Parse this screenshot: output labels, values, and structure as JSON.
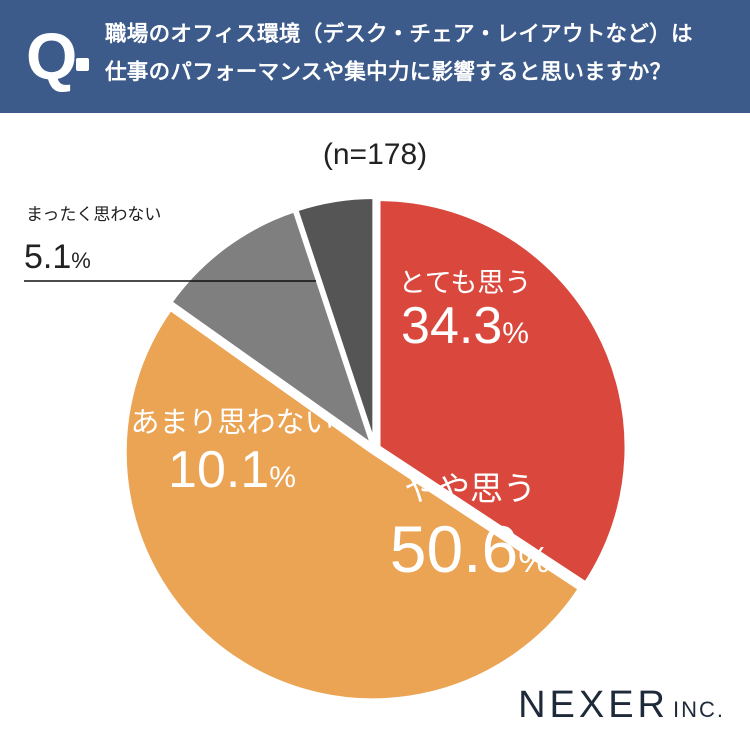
{
  "header": {
    "q_mark": "Q",
    "question_line1": "職場のオフィス環境（デスク・チェア・レイアウトなど）は",
    "question_line2": "仕事のパフォーマンスや集中力に影響すると思いますか？"
  },
  "n_label": "(n=178)",
  "logo": {
    "main": "NEXER",
    "suffix": "INC."
  },
  "colors": {
    "header_bg": "#3c5a8a",
    "slice_totemo": "#d9473d",
    "slice_yaya": "#eba354",
    "slice_amari": "#7f7f7f",
    "slice_mattaku": "#555555"
  },
  "chart_data": {
    "type": "pie",
    "start_angle": "12 o'clock",
    "direction": "clockwise",
    "slices": [
      {
        "label": "とても思う",
        "value": 34.3,
        "display": "34.3",
        "unit": "%",
        "color": "#d9473d"
      },
      {
        "label": "やや思う",
        "value": 50.6,
        "display": "50.6",
        "unit": "%",
        "color": "#eba354"
      },
      {
        "label": "あまり思わない",
        "value": 10.1,
        "display": "10.1",
        "unit": "%",
        "color": "#7f7f7f"
      },
      {
        "label": "まったく思わない",
        "value": 5.1,
        "display": "5.1",
        "unit": "%",
        "color": "#555555"
      }
    ]
  }
}
